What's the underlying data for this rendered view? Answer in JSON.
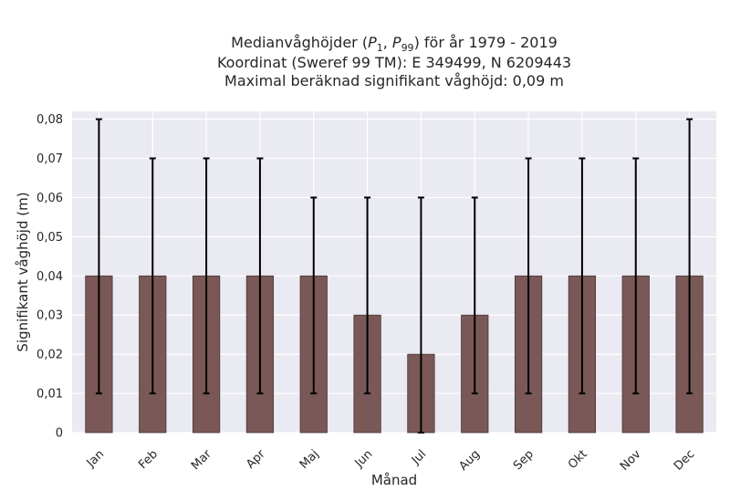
{
  "chart_data": {
    "type": "bar",
    "title_lines": [
      "Medianvåghöjder (P1, P99) för år 1979 - 2019",
      "Koordinat (Sweref 99 TM): E 349499, N 6209443",
      "Maximal beräknad signifikant våghöjd: 0,09 m"
    ],
    "xlabel": "Månad",
    "ylabel": "Signifikant våghöjd (m)",
    "categories": [
      "Jan",
      "Feb",
      "Mar",
      "Apr",
      "Maj",
      "Jun",
      "Jul",
      "Aug",
      "Sep",
      "Okt",
      "Nov",
      "Dec"
    ],
    "values": [
      0.04,
      0.04,
      0.04,
      0.04,
      0.04,
      0.03,
      0.02,
      0.03,
      0.04,
      0.04,
      0.04,
      0.04
    ],
    "p1": [
      0.01,
      0.01,
      0.01,
      0.01,
      0.01,
      0.01,
      0.0,
      0.01,
      0.01,
      0.01,
      0.01,
      0.01
    ],
    "p99": [
      0.08,
      0.07,
      0.07,
      0.07,
      0.06,
      0.06,
      0.06,
      0.06,
      0.07,
      0.07,
      0.07,
      0.08
    ],
    "ylim": [
      0,
      0.082
    ],
    "yticks": [
      0,
      0.01,
      0.02,
      0.03,
      0.04,
      0.05,
      0.06,
      0.07,
      0.08
    ],
    "ytick_labels": [
      "0",
      "0,01",
      "0,02",
      "0,03",
      "0,04",
      "0,05",
      "0,06",
      "0,07",
      "0,08"
    ],
    "grid": true,
    "colors": {
      "bar": "#7a5858",
      "bar_edge": "#4a3434",
      "errorbar": "#000000",
      "plot_background": "#eaeaf2",
      "grid": "#ffffff"
    }
  }
}
